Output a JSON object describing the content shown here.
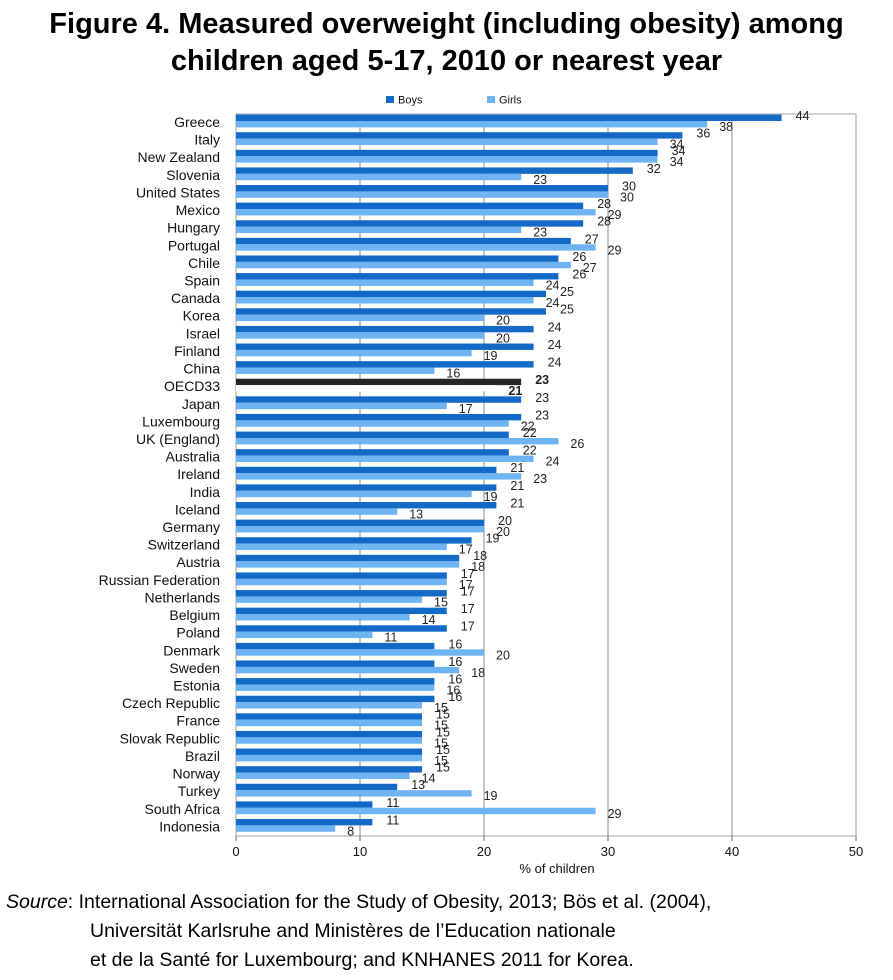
{
  "figure_title_line1": "Figure 4. Measured overweight (including obesity) among",
  "figure_title_line2": "children aged 5-17, 2010 or nearest year",
  "source": {
    "label": "Source",
    "line1": ": International Association for the Study of Obesity, 2013; Bös et al. (2004),",
    "line2": "Universität Karlsruhe and Ministères de l’Education nationale",
    "line3": "et de la Santé for Luxembourg; and KNHANES 2011 for Korea."
  },
  "colors": {
    "boys": "#1369c6",
    "girls": "#6fb4f2",
    "oecd_bar": "#262626",
    "gridline": "#8c8c8c"
  },
  "chart_data": {
    "type": "bar",
    "orientation": "horizontal",
    "title": "",
    "xlabel": "% of children",
    "ylabel": "",
    "xlim": [
      0,
      50
    ],
    "xticks": [
      0,
      10,
      20,
      30,
      40,
      50
    ],
    "grid": true,
    "legend_position": "top",
    "highlight_category": "OECD33",
    "categories": [
      "Greece",
      "Italy",
      "New Zealand",
      "Slovenia",
      "United States",
      "Mexico",
      "Hungary",
      "Portugal",
      "Chile",
      "Spain",
      "Canada",
      "Korea",
      "Israel",
      "Finland",
      "China",
      "OECD33",
      "Japan",
      "Luxembourg",
      "UK (England)",
      "Australia",
      "Ireland",
      "India",
      "Iceland",
      "Germany",
      "Switzerland",
      "Austria",
      "Russian Federation",
      "Netherlands",
      "Belgium",
      "Poland",
      "Denmark",
      "Sweden",
      "Estonia",
      "Czech Republic",
      "France",
      "Slovak Republic",
      "Brazil",
      "Norway",
      "Turkey",
      "South Africa",
      "Indonesia"
    ],
    "series": [
      {
        "name": "Boys",
        "values": [
          44,
          36,
          34,
          32,
          30,
          28,
          28,
          27,
          26,
          26,
          25,
          25,
          24,
          24,
          24,
          23,
          23,
          23,
          22,
          22,
          21,
          21,
          21,
          20,
          19,
          18,
          17,
          17,
          17,
          17,
          16,
          16,
          16,
          16,
          15,
          15,
          15,
          15,
          13,
          11,
          11
        ]
      },
      {
        "name": "Girls",
        "values": [
          38,
          34,
          34,
          23,
          30,
          29,
          23,
          29,
          27,
          24,
          24,
          20,
          20,
          19,
          16,
          21,
          17,
          22,
          26,
          24,
          23,
          19,
          13,
          20,
          17,
          18,
          17,
          15,
          14,
          11,
          20,
          18,
          16,
          15,
          15,
          15,
          15,
          14,
          19,
          29,
          8
        ]
      }
    ]
  }
}
